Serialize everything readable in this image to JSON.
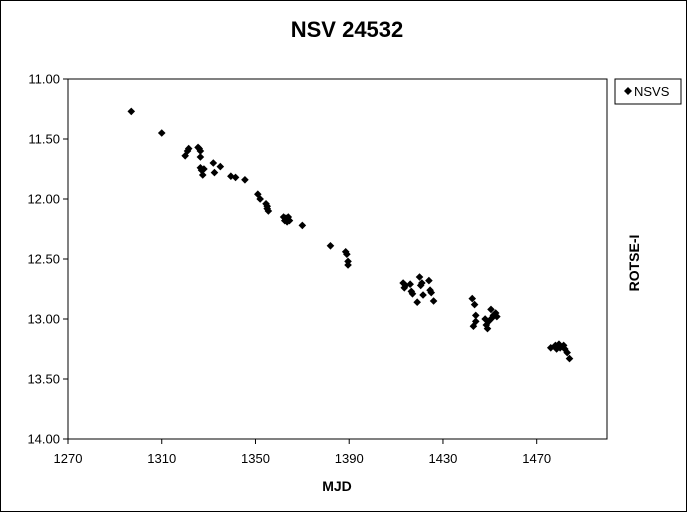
{
  "chart_data": {
    "type": "scatter",
    "title": "NSV 24532",
    "xlabel": "MJD",
    "ylabel": "ROTSE-I",
    "xlim": [
      1270,
      1500
    ],
    "ylim": [
      11.0,
      14.0
    ],
    "y_inverted": true,
    "xticks": [
      1270,
      1310,
      1350,
      1390,
      1430,
      1470
    ],
    "xtick_labels": [
      "1270",
      "1310",
      "1350",
      "1390",
      "1430",
      "1470"
    ],
    "yticks": [
      11.0,
      11.5,
      12.0,
      12.5,
      13.0,
      13.5,
      14.0
    ],
    "ytick_labels": [
      "11.00",
      "11.50",
      "12.00",
      "12.50",
      "13.00",
      "13.50",
      "14.00"
    ],
    "grid": false,
    "legend_position": "top-right",
    "marker": "diamond",
    "series": [
      {
        "name": "NSVS",
        "color": "#000000",
        "points": [
          [
            1297,
            11.27
          ],
          [
            1310,
            11.45
          ],
          [
            1320,
            11.64
          ],
          [
            1321,
            11.6
          ],
          [
            1321.5,
            11.58
          ],
          [
            1325.5,
            11.57
          ],
          [
            1326,
            11.58
          ],
          [
            1326.5,
            11.6
          ],
          [
            1326.5,
            11.65
          ],
          [
            1326.5,
            11.74
          ],
          [
            1327,
            11.76
          ],
          [
            1327.5,
            11.8
          ],
          [
            1328,
            11.75
          ],
          [
            1332,
            11.7
          ],
          [
            1332.5,
            11.78
          ],
          [
            1335,
            11.73
          ],
          [
            1339.5,
            11.81
          ],
          [
            1341.5,
            11.82
          ],
          [
            1345.5,
            11.84
          ],
          [
            1351,
            11.96
          ],
          [
            1352,
            12.0
          ],
          [
            1354.5,
            12.04
          ],
          [
            1355,
            12.06
          ],
          [
            1355,
            12.08
          ],
          [
            1355.5,
            12.1
          ],
          [
            1362,
            12.15
          ],
          [
            1362.5,
            12.18
          ],
          [
            1363,
            12.16
          ],
          [
            1363.5,
            12.19
          ],
          [
            1364,
            12.15
          ],
          [
            1364.5,
            12.18
          ],
          [
            1370,
            12.22
          ],
          [
            1382,
            12.39
          ],
          [
            1388.5,
            12.44
          ],
          [
            1389,
            12.46
          ],
          [
            1389.5,
            12.52
          ],
          [
            1389.5,
            12.55
          ],
          [
            1413,
            12.7
          ],
          [
            1413.5,
            12.74
          ],
          [
            1414,
            12.72
          ],
          [
            1416,
            12.71
          ],
          [
            1416.5,
            12.77
          ],
          [
            1417,
            12.79
          ],
          [
            1419,
            12.86
          ],
          [
            1420,
            12.65
          ],
          [
            1420.5,
            12.72
          ],
          [
            1421,
            12.7
          ],
          [
            1421.5,
            12.8
          ],
          [
            1424,
            12.68
          ],
          [
            1424.5,
            12.76
          ],
          [
            1425,
            12.78
          ],
          [
            1426,
            12.85
          ],
          [
            1442.5,
            12.83
          ],
          [
            1443,
            13.06
          ],
          [
            1443.5,
            12.88
          ],
          [
            1444,
            13.02
          ],
          [
            1444,
            12.97
          ],
          [
            1448,
            13.0
          ],
          [
            1448.5,
            13.05
          ],
          [
            1449,
            13.08
          ],
          [
            1449.5,
            13.02
          ],
          [
            1450.5,
            12.92
          ],
          [
            1451,
            12.99
          ],
          [
            1451.5,
            12.97
          ],
          [
            1452.5,
            12.95
          ],
          [
            1453,
            12.98
          ],
          [
            1476,
            13.24
          ],
          [
            1478,
            13.22
          ],
          [
            1478.5,
            13.25
          ],
          [
            1479.5,
            13.21
          ],
          [
            1480,
            13.24
          ],
          [
            1481.5,
            13.22
          ],
          [
            1482,
            13.25
          ],
          [
            1483,
            13.28
          ],
          [
            1484,
            13.33
          ]
        ]
      }
    ]
  }
}
